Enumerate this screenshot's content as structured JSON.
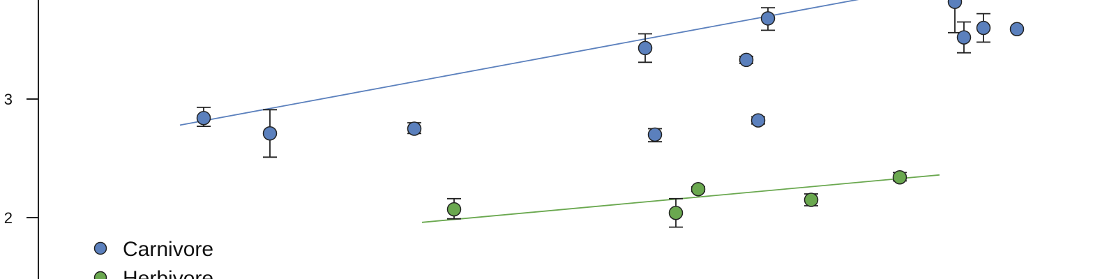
{
  "chart_data": {
    "type": "scatter",
    "title": "",
    "xlabel": "",
    "ylabel": "",
    "ylim": [
      1.53,
      3.83
    ],
    "yticks": [
      2,
      3
    ],
    "grid": false,
    "legend": {
      "placement": "bottom-left",
      "entries": [
        "Carnivore",
        "Herbivore"
      ]
    },
    "series": [
      {
        "name": "Carnivore",
        "color": "#5b80bd",
        "points": [
          {
            "x": 1,
            "y": 2.84,
            "err_low": 2.77,
            "err_high": 2.93
          },
          {
            "x": 2,
            "y": 2.71,
            "err_low": 2.51,
            "err_high": 2.91
          },
          {
            "x": 3,
            "y": 2.75,
            "err_low": 2.71,
            "err_high": 2.8
          },
          {
            "x": 4,
            "y": 3.43,
            "err_low": 3.31,
            "err_high": 3.55
          },
          {
            "x": 5,
            "y": 2.7,
            "err_low": 2.64,
            "err_high": 2.75
          },
          {
            "x": 6,
            "y": 3.33,
            "err_low": 3.3,
            "err_high": 3.36
          },
          {
            "x": 7,
            "y": 2.82,
            "err_low": 2.79,
            "err_high": 2.85
          },
          {
            "x": 8,
            "y": 3.68,
            "err_low": 3.58,
            "err_high": 3.77
          },
          {
            "x": 9,
            "y": 3.82,
            "err_low": 3.56,
            "err_high": 3.85
          },
          {
            "x": 10,
            "y": 3.52,
            "err_low": 3.39,
            "err_high": 3.65
          },
          {
            "x": 11,
            "y": 3.6,
            "err_low": 3.48,
            "err_high": 3.72
          },
          {
            "x": 12,
            "y": 3.59,
            "err_low": 3.59,
            "err_high": 3.59
          }
        ],
        "trend": {
          "x_start": 0.7,
          "y_start": 2.78,
          "x_end": 9.0,
          "y_end": 3.85
        }
      },
      {
        "name": "Herbivore",
        "color": "#6aa84f",
        "points": [
          {
            "x": 1,
            "y": 2.07,
            "err_low": 1.99,
            "err_high": 2.16
          },
          {
            "x": 2,
            "y": 2.04,
            "err_low": 1.92,
            "err_high": 2.16
          },
          {
            "x": 3,
            "y": 2.24,
            "err_low": 2.22,
            "err_high": 2.26
          },
          {
            "x": 4,
            "y": 2.15,
            "err_low": 2.1,
            "err_high": 2.2
          },
          {
            "x": 5,
            "y": 2.34,
            "err_low": 2.31,
            "err_high": 2.38
          }
        ],
        "trend": {
          "x_start": 0.5,
          "y_start": 1.96,
          "x_end": 5.4,
          "y_end": 2.36
        }
      }
    ]
  }
}
